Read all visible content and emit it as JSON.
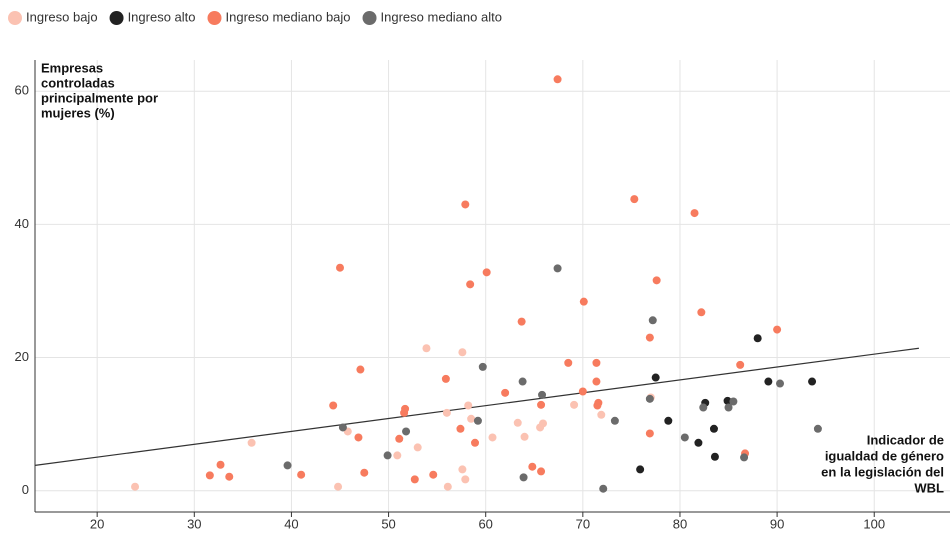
{
  "chart_data": {
    "type": "scatter",
    "y_label": [
      "Empresas",
      "controladas",
      "principalmente por",
      "mujeres (%)"
    ],
    "x_label": [
      "Indicador de",
      "igualdad de género",
      "en la legislación del",
      "WBL"
    ],
    "xlim": [
      13.6,
      107.8
    ],
    "ylim": [
      -3.2,
      64.7
    ],
    "xticks": [
      20,
      30,
      40,
      50,
      60,
      70,
      80,
      90,
      100
    ],
    "yticks": [
      0,
      20,
      40,
      60
    ],
    "grid": true,
    "legend": "top-left",
    "series": [
      {
        "name": "Ingreso bajo",
        "color": "#fbc2b2",
        "x": [
          23.9,
          35.9,
          44.8,
          45.8,
          50.9,
          53.0,
          53.9,
          56.0,
          56.1,
          57.6,
          57.6,
          57.9,
          58.2,
          58.5,
          60.7,
          63.3,
          64.0,
          65.6,
          65.9,
          69.1,
          71.9,
          77.0
        ],
        "values": [
          0.6,
          7.2,
          0.6,
          8.9,
          5.3,
          6.5,
          21.4,
          11.7,
          0.6,
          20.8,
          3.2,
          1.7,
          12.8,
          10.8,
          8.0,
          10.2,
          8.1,
          9.5,
          10.1,
          12.9,
          11.4,
          14.0
        ]
      },
      {
        "name": "Ingreso alto",
        "color": "#222222",
        "x": [
          75.9,
          77.5,
          78.8,
          81.9,
          82.6,
          83.5,
          83.6,
          84.9,
          88.0,
          89.1,
          93.6
        ],
        "values": [
          3.2,
          17.0,
          10.5,
          7.2,
          13.2,
          9.3,
          5.1,
          13.5,
          22.9,
          16.4,
          16.4
        ]
      },
      {
        "name": "Ingreso mediano bajo",
        "color": "#f77b5e",
        "x": [
          31.6,
          32.7,
          33.6,
          41.0,
          44.3,
          45.0,
          46.9,
          47.1,
          47.5,
          51.1,
          51.7,
          51.6,
          52.7,
          54.6,
          55.9,
          57.4,
          57.9,
          58.4,
          58.9,
          60.1,
          62.0,
          63.7,
          64.8,
          65.7,
          65.7,
          67.4,
          68.5,
          70.0,
          70.1,
          71.4,
          71.4,
          71.6,
          71.5,
          75.3,
          76.9,
          76.9,
          77.6,
          81.5,
          82.2,
          86.2,
          86.7,
          90.0
        ],
        "values": [
          2.3,
          3.9,
          2.1,
          2.4,
          12.8,
          33.5,
          8.0,
          18.2,
          2.7,
          7.8,
          12.3,
          11.7,
          1.7,
          2.4,
          16.8,
          9.3,
          43.0,
          31.0,
          7.2,
          32.8,
          14.7,
          25.4,
          3.6,
          12.9,
          2.9,
          61.8,
          19.2,
          14.9,
          28.4,
          19.2,
          16.4,
          13.2,
          12.8,
          43.8,
          23.0,
          8.6,
          31.6,
          41.7,
          26.8,
          18.9,
          5.6,
          24.2
        ]
      },
      {
        "name": "Ingreso mediano alto",
        "color": "#6b6b6b",
        "x": [
          39.6,
          45.3,
          49.9,
          51.8,
          59.2,
          59.7,
          63.8,
          63.9,
          65.8,
          67.4,
          72.1,
          73.3,
          76.9,
          77.2,
          80.5,
          82.4,
          85.0,
          85.5,
          86.6,
          90.3,
          94.2
        ],
        "values": [
          3.8,
          9.5,
          5.3,
          8.9,
          10.5,
          18.6,
          16.4,
          2.0,
          14.4,
          33.4,
          0.3,
          10.5,
          13.8,
          25.6,
          8.0,
          12.5,
          12.5,
          13.4,
          5.0,
          16.1,
          9.3
        ]
      }
    ],
    "trendline": {
      "color": "#333333",
      "x": [
        13.6,
        104.6
      ],
      "values": [
        3.8,
        21.4
      ]
    }
  }
}
